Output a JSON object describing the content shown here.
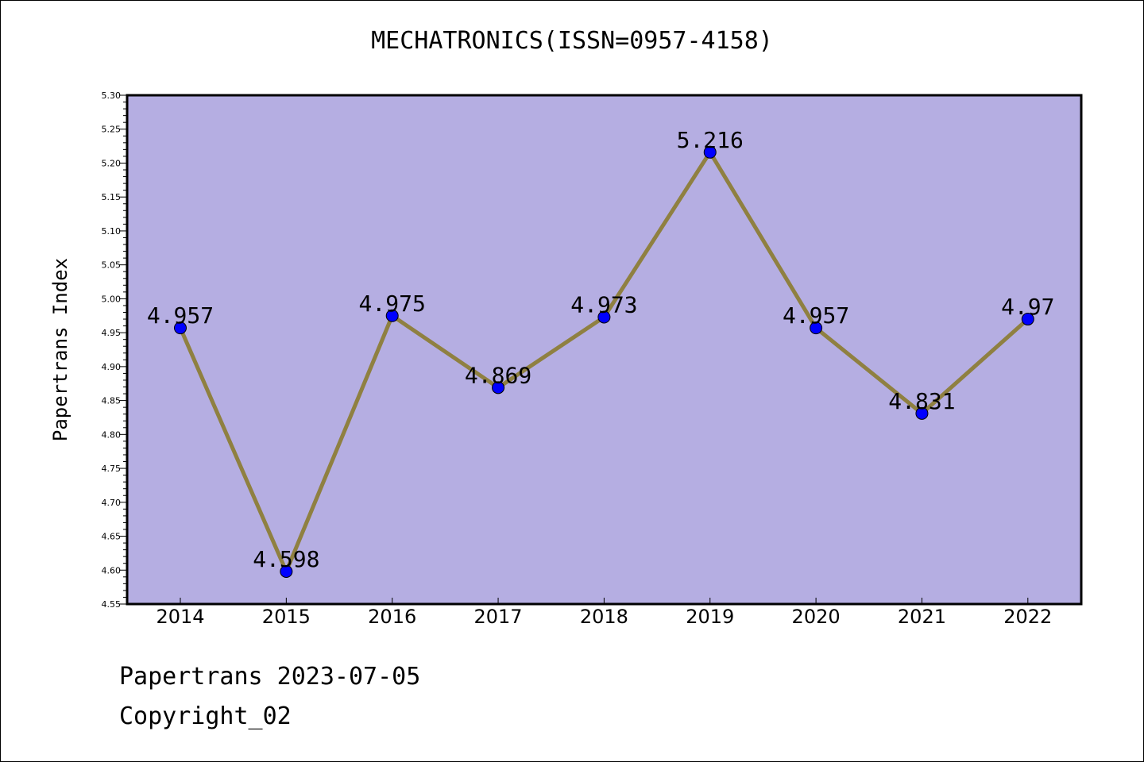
{
  "title": "MECHATRONICS(ISSN=0957-4158)",
  "footer": {
    "line1": "Papertrans 2023-07-05",
    "line2": "Copyright_02"
  },
  "colors": {
    "plot_background": "#b5aee2",
    "line": "#8f8041",
    "marker": "#0000ff"
  },
  "chart_data": {
    "type": "line",
    "title": "MECHATRONICS(ISSN=0957-4158)",
    "xlabel": "",
    "ylabel": "Papertrans Index",
    "categories": [
      "2014",
      "2015",
      "2016",
      "2017",
      "2018",
      "2019",
      "2020",
      "2021",
      "2022"
    ],
    "series": [
      {
        "values": [
          4.957,
          4.598,
          4.975,
          4.869,
          4.973,
          5.216,
          4.957,
          4.831,
          4.97
        ],
        "labels": [
          "4.957",
          "4.598",
          "4.975",
          "4.869",
          "4.973",
          "5.216",
          "4.957",
          "4.831",
          "4.97"
        ]
      }
    ],
    "ylim": [
      4.55,
      5.3
    ],
    "yticks": [
      "4.55",
      "4.60",
      "4.65",
      "4.70",
      "4.75",
      "4.80",
      "4.85",
      "4.90",
      "4.95",
      "5.00",
      "5.05",
      "5.10",
      "5.15",
      "5.20",
      "5.25",
      "5.30"
    ],
    "grid": false,
    "legend": "none"
  }
}
